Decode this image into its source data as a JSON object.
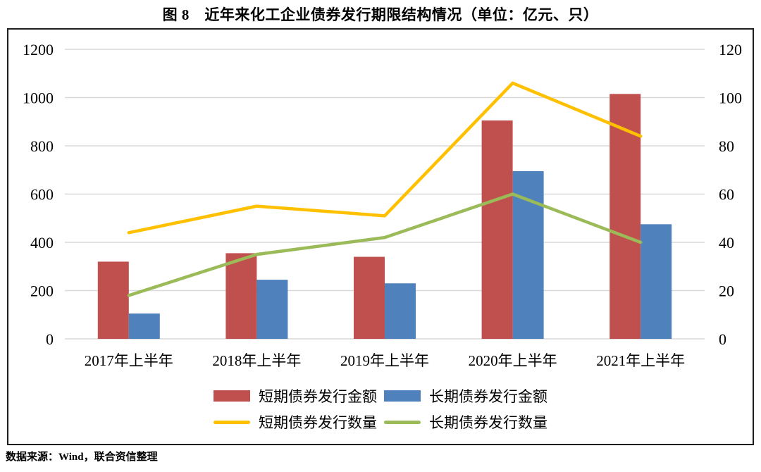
{
  "title": "图 8　近年来化工企业债券发行期限结构情况（单位：亿元、只）",
  "source": "数据来源：Wind，联合资信整理",
  "chart_data": {
    "type": "combo",
    "categories": [
      "2017年上半年",
      "2018年上半年",
      "2019年上半年",
      "2020年上半年",
      "2021年上半年"
    ],
    "series": [
      {
        "name": "短期债券发行金额",
        "type": "bar",
        "axis": "left",
        "color": "#C0504D",
        "values": [
          320,
          355,
          340,
          905,
          1015
        ]
      },
      {
        "name": "长期债券发行金额",
        "type": "bar",
        "axis": "left",
        "color": "#4F81BD",
        "values": [
          105,
          245,
          230,
          695,
          475
        ]
      },
      {
        "name": "短期债券发行数量",
        "type": "line",
        "axis": "right",
        "color": "#FFC000",
        "values": [
          44,
          55,
          51,
          106,
          84
        ]
      },
      {
        "name": "长期债券发行数量",
        "type": "line",
        "axis": "right",
        "color": "#9BBB59",
        "values": [
          18,
          35,
          42,
          60,
          40
        ]
      }
    ],
    "left_axis": {
      "min": 0,
      "max": 1200,
      "step": 200,
      "ticks": [
        0,
        200,
        400,
        600,
        800,
        1000,
        1200
      ]
    },
    "right_axis": {
      "min": 0,
      "max": 120,
      "step": 20,
      "ticks": [
        0,
        20,
        40,
        60,
        80,
        100,
        120
      ]
    },
    "grid": true,
    "gridline_color": "#D9D9D9",
    "legend_position": "bottom"
  }
}
